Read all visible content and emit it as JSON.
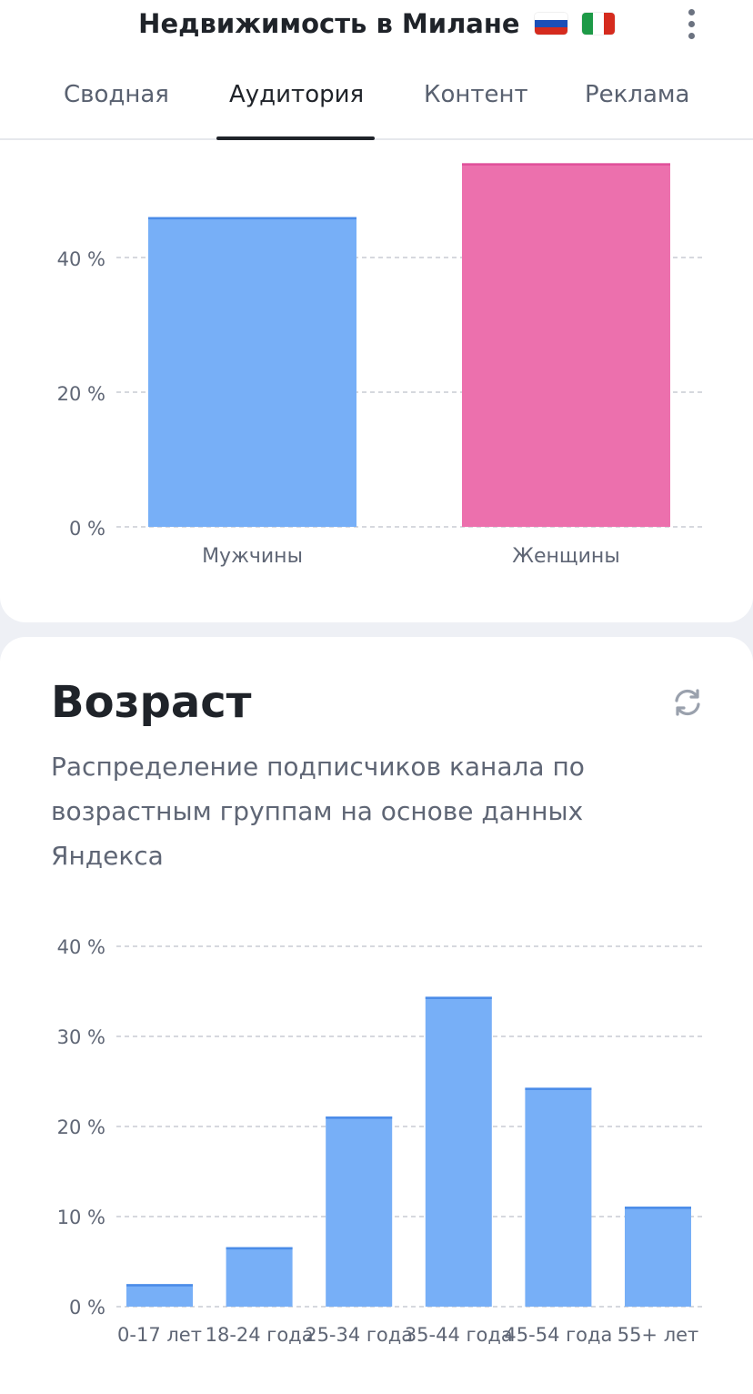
{
  "header": {
    "title": "Недвижимость в Милане",
    "flags": [
      "russia-flag",
      "italy-flag"
    ],
    "menu_icon": "more-vertical-icon"
  },
  "tabs": [
    {
      "label": "Сводная",
      "active": false
    },
    {
      "label": "Аудитория",
      "active": true
    },
    {
      "label": "Контент",
      "active": false
    },
    {
      "label": "Реклама",
      "active": false
    }
  ],
  "gender_section": {
    "chart_data": {
      "type": "bar",
      "categories": [
        "Мужчины",
        "Женщины"
      ],
      "values": [
        46,
        54
      ],
      "colors": [
        "#77aff7",
        "#ec70ad"
      ],
      "yticks": [
        "0 %",
        "20 %",
        "40 %"
      ],
      "ylim": [
        0,
        54
      ]
    }
  },
  "age_section": {
    "title": "Возраст",
    "description": "Распределение подписчиков канала по возрастным группам на основе данных Яндекса",
    "refresh_icon": "refresh-icon",
    "chart_data": {
      "type": "bar",
      "categories": [
        "0-17 лет",
        "18-24 года",
        "25-34 года",
        "35-44 года",
        "45-54 года",
        "55+ лет"
      ],
      "values": [
        2.5,
        6.6,
        21.1,
        34.4,
        24.3,
        11.1
      ],
      "color": "#77aff7",
      "yticks": [
        "0 %",
        "10 %",
        "20 %",
        "30 %",
        "40 %"
      ],
      "ylim": [
        0,
        40
      ]
    }
  }
}
